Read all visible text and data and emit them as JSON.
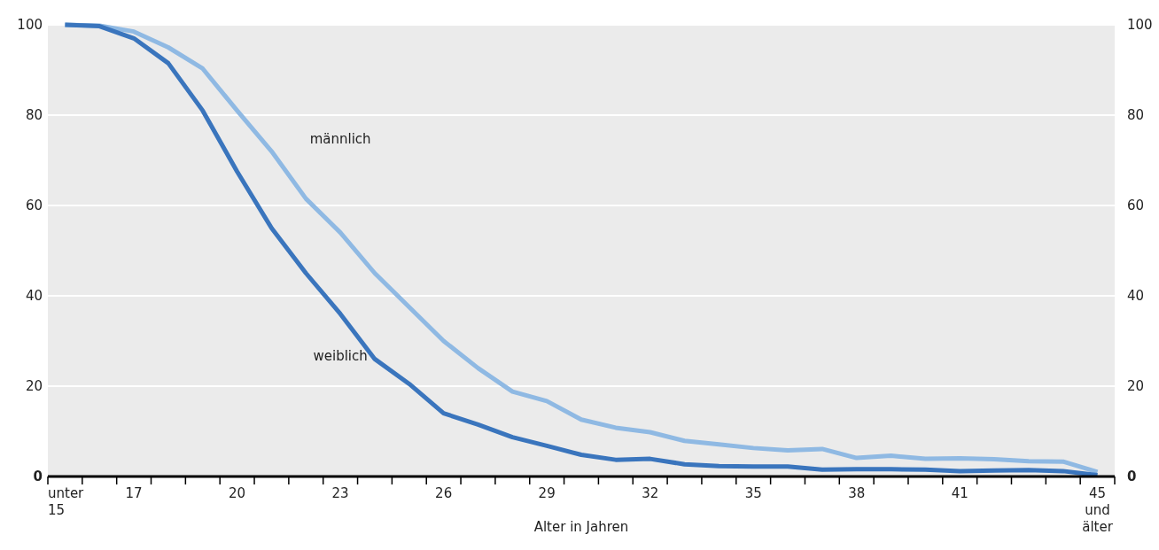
{
  "chart_data": {
    "type": "line",
    "xlabel": "Alter in Jahren",
    "categories": [
      "unter 15",
      null,
      "17",
      null,
      null,
      "20",
      null,
      null,
      "23",
      null,
      null,
      "26",
      null,
      null,
      "29",
      null,
      null,
      "32",
      null,
      null,
      "35",
      null,
      null,
      "38",
      null,
      null,
      "41",
      null,
      null,
      null,
      "45 und älter"
    ],
    "series": [
      {
        "name": "männlich",
        "color": "#8fb9e3",
        "values": [
          100,
          99.8,
          98.5,
          95,
          90.3,
          81,
          72,
          61.5,
          54,
          45,
          37.5,
          30,
          24,
          18.8,
          16.7,
          12.6,
          10.8,
          9.8,
          7.9,
          7.1,
          6.3,
          5.8,
          6.1,
          4.1,
          4.6,
          3.9,
          4.0,
          3.8,
          3.4,
          3.3,
          1.0
        ]
      },
      {
        "name": "weiblich",
        "color": "#3a75bd",
        "values": [
          100,
          99.7,
          97,
          91.5,
          81,
          67.5,
          55,
          45,
          36,
          26,
          20.5,
          14,
          11.5,
          8.7,
          6.8,
          4.8,
          3.7,
          3.9,
          2.7,
          2.3,
          2.2,
          2.2,
          1.5,
          1.6,
          1.6,
          1.5,
          1.2,
          1.3,
          1.4,
          1.2,
          0.3
        ]
      }
    ],
    "ylim": [
      0,
      100
    ],
    "yticks": [
      0,
      20,
      40,
      60,
      80,
      100
    ],
    "y2lim": [
      0,
      100
    ],
    "y2ticks": [
      0,
      20,
      40,
      60,
      80,
      100
    ],
    "grid": "y",
    "legend": false,
    "marker": "none",
    "line_style": "solid"
  }
}
